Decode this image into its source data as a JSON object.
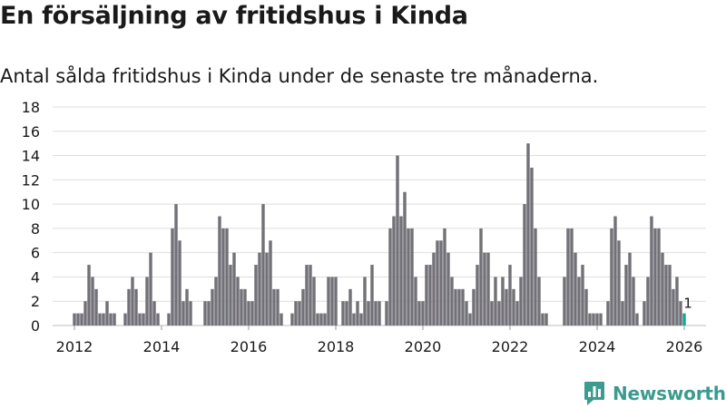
{
  "title": "En försäljning av fritidshus i Kinda",
  "subtitle": "Antal sålda fritidshus i Kinda under de senaste tre månaderna.",
  "brand": {
    "name": "Newsworthy",
    "icon": "newsworthy-logo-icon",
    "color": "#3b9b8f"
  },
  "colors": {
    "bar": "#737178",
    "highlight": "#1aa39a",
    "grid": "#dedede",
    "text": "#1a1a1a"
  },
  "chart_data": {
    "type": "bar",
    "title": "En försäljning av fritidshus i Kinda",
    "xlabel": "",
    "ylabel": "",
    "ylim": [
      0,
      18
    ],
    "yticks": [
      0,
      2,
      4,
      6,
      8,
      10,
      12,
      14,
      16,
      18
    ],
    "xlim": [
      2011.5,
      2026.5
    ],
    "xticks": [
      2012,
      2014,
      2016,
      2018,
      2020,
      2022,
      2024,
      2026
    ],
    "grid": true,
    "series": [
      {
        "name": "Antal sålda fritidshus",
        "x_start": 2012.0,
        "step": 0.08333,
        "values": [
          1,
          1,
          1,
          2,
          5,
          4,
          3,
          1,
          1,
          2,
          1,
          1,
          0,
          0,
          1,
          3,
          4,
          3,
          1,
          1,
          4,
          6,
          2,
          1,
          0,
          0,
          1,
          8,
          10,
          7,
          2,
          3,
          2,
          0,
          0,
          0,
          2,
          2,
          3,
          4,
          9,
          8,
          8,
          5,
          6,
          4,
          3,
          3,
          2,
          2,
          5,
          6,
          10,
          6,
          7,
          3,
          3,
          1,
          0,
          0,
          1,
          2,
          2,
          3,
          5,
          5,
          4,
          1,
          1,
          1,
          4,
          4,
          4,
          0,
          2,
          2,
          3,
          1,
          2,
          1,
          4,
          2,
          5,
          2,
          2,
          0,
          2,
          8,
          9,
          14,
          9,
          11,
          8,
          8,
          4,
          2,
          2,
          5,
          5,
          6,
          7,
          7,
          8,
          6,
          4,
          3,
          3,
          3,
          2,
          1,
          3,
          5,
          8,
          6,
          6,
          2,
          4,
          2,
          4,
          3,
          5,
          3,
          2,
          4,
          10,
          15,
          13,
          8,
          4,
          1,
          1,
          0,
          0,
          0,
          0,
          4,
          8,
          8,
          6,
          4,
          5,
          3,
          1,
          1,
          1,
          1,
          0,
          2,
          8,
          9,
          7,
          2,
          5,
          6,
          4,
          1,
          0,
          2,
          4,
          9,
          8,
          8,
          6,
          5,
          5,
          3,
          4,
          2,
          1
        ]
      }
    ],
    "highlight": {
      "label": "1",
      "value": 1,
      "x": 2026.0833
    }
  }
}
